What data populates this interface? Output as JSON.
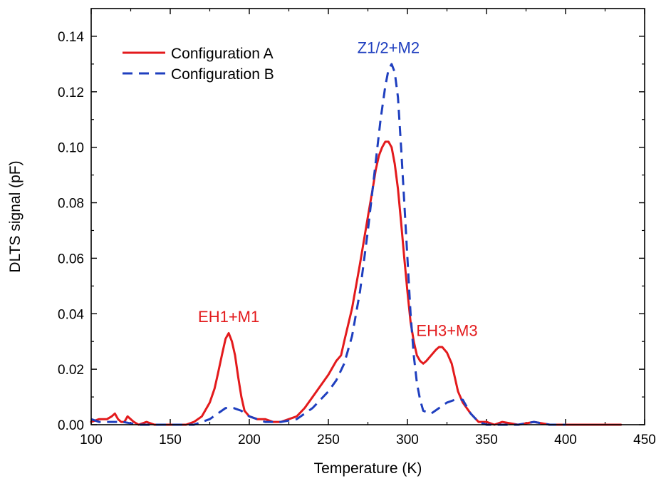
{
  "chart_data": {
    "type": "line",
    "xlabel": "Temperature (K)",
    "ylabel": "DLTS signal (pF)",
    "xlim": [
      100,
      450
    ],
    "ylim": [
      0,
      0.15
    ],
    "x_ticks": [
      "100",
      "150",
      "200",
      "250",
      "300",
      "350",
      "400",
      "450"
    ],
    "y_ticks": [
      "0.00",
      "0.02",
      "0.04",
      "0.06",
      "0.08",
      "0.10",
      "0.12",
      "0.14"
    ],
    "legend_position": "top-left",
    "series": [
      {
        "name": "Configuration A",
        "color": "#e31a1c",
        "style": "solid",
        "x": [
          100,
          105,
          110,
          113,
          115,
          117,
          119,
          121,
          123,
          125,
          127,
          130,
          135,
          140,
          145,
          150,
          155,
          160,
          165,
          170,
          175,
          178,
          180,
          183,
          185,
          187,
          189,
          191,
          193,
          195,
          197,
          200,
          205,
          210,
          215,
          220,
          225,
          230,
          235,
          240,
          245,
          250,
          255,
          258,
          260,
          265,
          270,
          275,
          278,
          280,
          282,
          284,
          286,
          288,
          290,
          292,
          294,
          296,
          298,
          300,
          302,
          304,
          306,
          308,
          310,
          312,
          315,
          318,
          320,
          322,
          325,
          328,
          330,
          332,
          335,
          340,
          345,
          350,
          355,
          360,
          370,
          380,
          390,
          400,
          410,
          420,
          430,
          435
        ],
        "y": [
          0.001,
          0.002,
          0.002,
          0.003,
          0.004,
          0.002,
          0.001,
          0.001,
          0.003,
          0.002,
          0.001,
          0.0,
          0.001,
          0.0,
          0.0,
          0.0,
          0.0,
          0.0,
          0.001,
          0.003,
          0.008,
          0.013,
          0.018,
          0.026,
          0.031,
          0.033,
          0.03,
          0.025,
          0.017,
          0.01,
          0.005,
          0.003,
          0.002,
          0.002,
          0.001,
          0.001,
          0.002,
          0.003,
          0.006,
          0.01,
          0.014,
          0.018,
          0.023,
          0.025,
          0.03,
          0.042,
          0.058,
          0.075,
          0.085,
          0.092,
          0.097,
          0.1,
          0.102,
          0.102,
          0.1,
          0.094,
          0.085,
          0.073,
          0.06,
          0.048,
          0.037,
          0.03,
          0.025,
          0.023,
          0.022,
          0.023,
          0.025,
          0.027,
          0.028,
          0.028,
          0.026,
          0.022,
          0.017,
          0.012,
          0.008,
          0.004,
          0.001,
          0.001,
          0.0,
          0.001,
          0.0,
          0.001,
          0.0,
          0.0,
          0.0,
          0.0,
          0.0,
          0.0
        ]
      },
      {
        "name": "Configuration B",
        "color": "#1f3fbf",
        "style": "dashed",
        "x": [
          100,
          105,
          110,
          115,
          120,
          130,
          140,
          150,
          160,
          165,
          170,
          175,
          180,
          185,
          190,
          195,
          200,
          205,
          210,
          220,
          230,
          240,
          250,
          255,
          260,
          265,
          270,
          275,
          280,
          283,
          286,
          288,
          290,
          292,
          294,
          296,
          298,
          300,
          302,
          304,
          306,
          308,
          310,
          315,
          320,
          325,
          330,
          335,
          340,
          345,
          350,
          360,
          370,
          380,
          390,
          400
        ],
        "y": [
          0.002,
          0.001,
          0.001,
          0.001,
          0.001,
          0.0,
          0.0,
          0.0,
          0.0,
          0.0,
          0.001,
          0.002,
          0.004,
          0.006,
          0.006,
          0.005,
          0.003,
          0.002,
          0.001,
          0.001,
          0.002,
          0.006,
          0.012,
          0.016,
          0.022,
          0.032,
          0.048,
          0.07,
          0.095,
          0.11,
          0.122,
          0.128,
          0.13,
          0.127,
          0.118,
          0.1,
          0.08,
          0.06,
          0.04,
          0.025,
          0.015,
          0.009,
          0.005,
          0.004,
          0.006,
          0.008,
          0.009,
          0.009,
          0.004,
          0.001,
          0.0,
          0.0,
          0.0,
          0.001,
          0.0,
          0.0
        ]
      }
    ],
    "annotations": [
      {
        "text": "EH1+M1",
        "x": 187,
        "y": 0.037,
        "color": "#e31a1c"
      },
      {
        "text": "Z1/2+M2",
        "x": 288,
        "y": 0.134,
        "color": "#1f3fbf"
      },
      {
        "text": "EH3+M3",
        "x": 325,
        "y": 0.032,
        "color": "#e31a1c"
      }
    ]
  }
}
